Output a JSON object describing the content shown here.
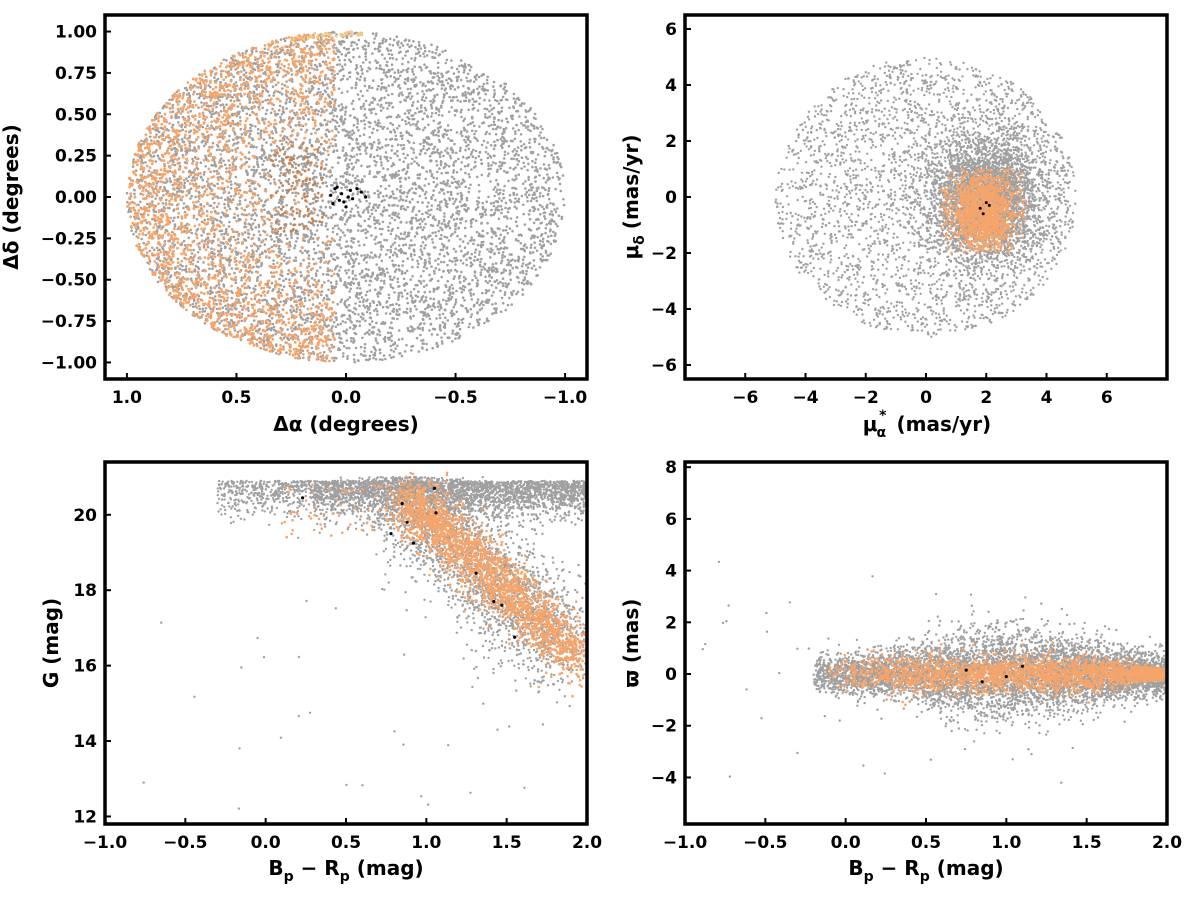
{
  "colors": {
    "field": "#a0a0a0",
    "members": "#f5a56b",
    "core": "#000000",
    "members_faint": "#f2c98a",
    "members_dark": "#c28555"
  },
  "chart_data": [
    {
      "id": "spatial",
      "type": "scatter",
      "xlabel_main": "Δα (degrees)",
      "ylabel_main": "Δδ (degrees)",
      "xlim": [
        1.1,
        -1.1
      ],
      "ylim": [
        -1.1,
        1.1
      ],
      "xticks": [
        1.0,
        0.5,
        0.0,
        -0.5,
        -1.0
      ],
      "xtick_labels": [
        "1.0",
        "0.5",
        "0.0",
        "−0.5",
        "−1.0"
      ],
      "yticks": [
        1.0,
        0.75,
        0.5,
        0.25,
        0.0,
        -0.25,
        -0.5,
        -0.75,
        -1.0
      ],
      "ytick_labels": [
        "1.00",
        "0.75",
        "0.50",
        "0.25",
        "0.00",
        "−0.25",
        "−0.50",
        "−0.75",
        "−1.00"
      ],
      "series": [
        {
          "role": "field",
          "distribution": "uniform disk",
          "center": [
            0.0,
            0.0
          ],
          "radius": 1.0,
          "count": 6000
        },
        {
          "role": "members",
          "distribution": "disk, Δα > 0 (left half), denser near edge",
          "center": [
            0.0,
            0.0
          ],
          "radius": 1.0,
          "count": 2200
        },
        {
          "role": "core",
          "points": [
            [
              0.05,
              0.05
            ],
            [
              0.02,
              0.02
            ],
            [
              -0.01,
              0.0
            ],
            [
              0.03,
              -0.02
            ],
            [
              0.06,
              -0.04
            ],
            [
              0.0,
              -0.06
            ],
            [
              -0.02,
              0.04
            ],
            [
              -0.05,
              0.05
            ],
            [
              -0.07,
              0.03
            ],
            [
              -0.09,
              0.0
            ],
            [
              0.04,
              0.06
            ],
            [
              0.01,
              -0.03
            ],
            [
              0.07,
              0.01
            ],
            [
              -0.03,
              -0.01
            ]
          ]
        }
      ]
    },
    {
      "id": "proper-motion",
      "type": "scatter",
      "xlabel_main": "μ",
      "xlabel_sub": "α",
      "xlabel_sup": "*",
      "xlabel_unit": "(mas/yr)",
      "ylabel_main": "μ",
      "ylabel_sub": "δ",
      "ylabel_unit": "(mas/yr)",
      "xlim": [
        -8,
        8
      ],
      "ylim": [
        -6.5,
        6.5
      ],
      "xticks": [
        -6,
        -4,
        -2,
        0,
        2,
        4,
        6
      ],
      "xtick_labels": [
        "−6",
        "−4",
        "−2",
        "0",
        "2",
        "4",
        "6"
      ],
      "yticks": [
        6,
        4,
        2,
        0,
        -2,
        -4,
        -6
      ],
      "ytick_labels": [
        "6",
        "4",
        "2",
        "0",
        "−2",
        "−4",
        "−6"
      ],
      "series": [
        {
          "role": "field",
          "distribution": "disk r=5 centered (0,0), concentrated toward (2,0)",
          "center": [
            2.0,
            0.0
          ],
          "radius": 5.0,
          "count": 6000
        },
        {
          "role": "members",
          "distribution": "gaussian",
          "center": [
            1.9,
            -0.5
          ],
          "sigma": [
            0.55,
            0.7
          ],
          "count": 1500
        },
        {
          "role": "core",
          "points": [
            [
              1.8,
              -0.4
            ],
            [
              2.1,
              -0.3
            ],
            [
              1.9,
              -0.6
            ],
            [
              2.0,
              -0.2
            ]
          ]
        }
      ]
    },
    {
      "id": "cmd",
      "type": "scatter",
      "xlabel_main": "B",
      "xlabel_sub1": "p",
      "xlabel_mid": " − R",
      "xlabel_sub2": "p",
      "xlabel_unit": " (mag)",
      "ylabel_main": "G (mag)",
      "xlim": [
        -1.0,
        2.0
      ],
      "ylim": [
        11.8,
        21.4
      ],
      "y_inverted": false,
      "xticks": [
        -1.0,
        -0.5,
        0.0,
        0.5,
        1.0,
        1.5,
        2.0
      ],
      "xtick_labels": [
        "−1.0",
        "−0.5",
        "0.0",
        "0.5",
        "1.0",
        "1.5",
        "2.0"
      ],
      "yticks": [
        20,
        18,
        16,
        14,
        12
      ],
      "ytick_labels": [
        "20",
        "18",
        "16",
        "14",
        "12"
      ],
      "series": [
        {
          "role": "field",
          "distribution": "faint band G≈20-21 across colour, plus sequence",
          "count": 6000
        },
        {
          "role": "members",
          "distribution": "sequence from (0.9,20.5) to (2.0,16.0), spread",
          "count": 2200
        },
        {
          "role": "core",
          "points": [
            [
              0.23,
              20.45
            ],
            [
              0.78,
              19.5
            ],
            [
              0.92,
              19.25
            ],
            [
              1.06,
              20.05
            ],
            [
              0.88,
              19.8
            ],
            [
              1.31,
              18.45
            ],
            [
              1.47,
              17.6
            ],
            [
              1.42,
              17.7
            ],
            [
              1.55,
              16.75
            ],
            [
              1.05,
              20.7
            ],
            [
              0.85,
              20.3
            ]
          ]
        }
      ]
    },
    {
      "id": "parallax",
      "type": "scatter",
      "xlabel_main": "B",
      "xlabel_sub1": "p",
      "xlabel_mid": " − R",
      "xlabel_sub2": "p",
      "xlabel_unit": " (mag)",
      "ylabel_main": "ϖ (mas)",
      "xlim": [
        -1.0,
        2.0
      ],
      "ylim": [
        -5.8,
        8.2
      ],
      "xticks": [
        -1.0,
        -0.5,
        0.0,
        0.5,
        1.0,
        1.5,
        2.0
      ],
      "xtick_labels": [
        "−1.0",
        "−0.5",
        "0.0",
        "0.5",
        "1.0",
        "1.5",
        "2.0"
      ],
      "yticks": [
        8,
        6,
        4,
        2,
        0,
        -2,
        -4
      ],
      "ytick_labels": [
        "8",
        "6",
        "4",
        "2",
        "0",
        "−2",
        "−4"
      ],
      "series": [
        {
          "role": "field",
          "distribution": "spread around 0, wider at x≈1",
          "count": 6000
        },
        {
          "role": "members",
          "distribution": "tight around 0, tapering toward x=2",
          "count": 2200
        },
        {
          "role": "core",
          "points": [
            [
              0.75,
              0.15
            ],
            [
              0.85,
              -0.3
            ],
            [
              1.1,
              0.3
            ],
            [
              1.0,
              -0.1
            ]
          ]
        }
      ]
    }
  ]
}
